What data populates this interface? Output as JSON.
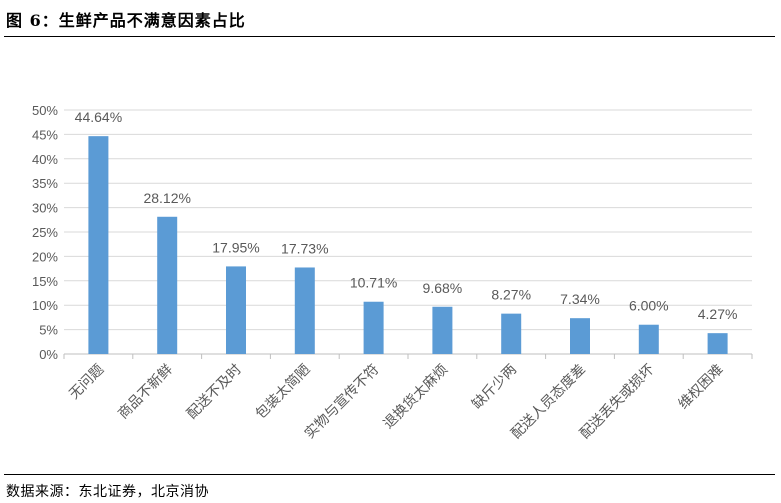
{
  "figure": {
    "title": "图 6：生鲜产品不满意因素占比",
    "source": "数据来源：东北证券，北京消协"
  },
  "colors": {
    "bar": "#5B9BD5",
    "grid": "#D9D9D9",
    "axis": "#BFBFBF",
    "text": "#595959"
  },
  "chart_data": {
    "type": "bar",
    "title": "",
    "xlabel": "",
    "ylabel": "",
    "ylim": [
      0,
      50
    ],
    "yticks": [
      "0%",
      "5%",
      "10%",
      "15%",
      "20%",
      "25%",
      "30%",
      "35%",
      "40%",
      "45%",
      "50%"
    ],
    "grid": true,
    "categories": [
      "无问题",
      "商品不新鲜",
      "配送不及时",
      "包装太简陋",
      "实物与宣传不符",
      "退换货太麻烦",
      "缺斤少两",
      "配送人员态度差",
      "配送丢失或损坏",
      "维权困难"
    ],
    "values": [
      44.64,
      28.12,
      17.95,
      17.73,
      10.71,
      9.68,
      8.27,
      7.34,
      6.0,
      4.27
    ],
    "data_labels": [
      "44.64%",
      "28.12%",
      "17.95%",
      "17.73%",
      "10.71%",
      "9.68%",
      "8.27%",
      "7.34%",
      "6.00%",
      "4.27%"
    ]
  }
}
